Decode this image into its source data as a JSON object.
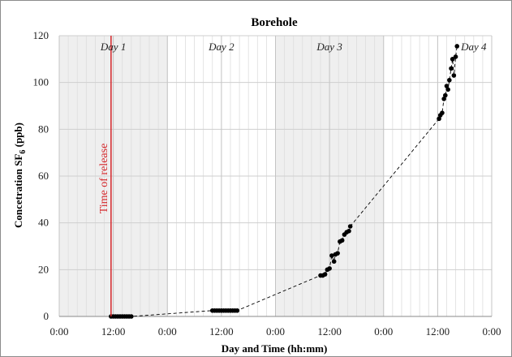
{
  "chart_data": {
    "type": "scatter",
    "title": "Borehole",
    "xlabel": "Day and Time (hh:mm)",
    "ylabel_main": "Concetration SF",
    "ylabel_sub": "6",
    "ylabel_unit": " (ppb)",
    "xlim_hours": [
      0,
      96
    ],
    "ylim": [
      0,
      120
    ],
    "x_ticks_hours": [
      0,
      12,
      24,
      36,
      48,
      60,
      72,
      84,
      96
    ],
    "x_tick_labels": [
      "0:00",
      "12:00",
      "0:00",
      "12:00",
      "0:00",
      "12:00",
      "0:00",
      "12:00",
      "0:00"
    ],
    "y_ticks": [
      0,
      20,
      40,
      60,
      80,
      100,
      120
    ],
    "minor_grid_hours": 2,
    "shaded_days": [
      1,
      3
    ],
    "day_labels": [
      {
        "text": "Day 1",
        "hour": 12
      },
      {
        "text": "Day 2",
        "hour": 36
      },
      {
        "text": "Day 3",
        "hour": 60
      },
      {
        "text": "Day 4",
        "hour": 92
      }
    ],
    "release": {
      "label": "Time of release",
      "hour": 11.5,
      "color": "#d4262a"
    },
    "series": [
      {
        "marker_color": "#000000",
        "line_style": "dashed",
        "x_hours": [
          11.5,
          12.0,
          12.5,
          13.0,
          13.5,
          14.0,
          14.5,
          15.0,
          15.5,
          16.0,
          34.0,
          34.5,
          35.0,
          35.5,
          36.0,
          36.5,
          37.0,
          37.5,
          38.0,
          38.5,
          39.0,
          39.5,
          58.0,
          58.5,
          59.0,
          59.5,
          60.0,
          60.5,
          61.0,
          61.3,
          61.8,
          62.3,
          62.8,
          63.3,
          63.8,
          64.3,
          64.6,
          84.3,
          84.6,
          85.0,
          85.4,
          85.7,
          86.0,
          86.3,
          86.6,
          87.0,
          87.3,
          87.6,
          88.0,
          88.3
        ],
        "y_values": [
          0,
          0,
          0,
          0,
          0,
          0,
          0,
          0,
          0,
          0,
          2.5,
          2.5,
          2.5,
          2.5,
          2.5,
          2.5,
          2.5,
          2.5,
          2.5,
          2.5,
          2.5,
          2.5,
          17.5,
          17.5,
          18,
          20,
          20.5,
          26,
          23.5,
          26.5,
          27,
          32,
          32.5,
          35,
          36,
          36.5,
          38.5,
          84.5,
          86,
          87,
          93,
          94.5,
          98.5,
          97,
          101,
          106,
          110,
          103,
          111,
          115.5
        ]
      }
    ]
  }
}
